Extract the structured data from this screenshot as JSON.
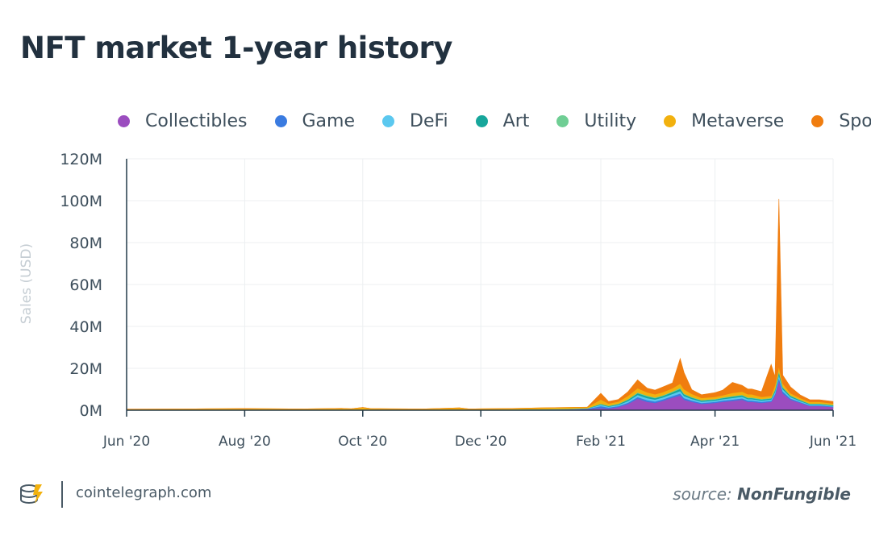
{
  "title": "NFT market 1-year history",
  "footer": {
    "site": "cointelegraph.com",
    "source_prefix": "source:",
    "source_name": "NonFungible"
  },
  "chart_data": {
    "type": "area",
    "stacked": true,
    "title": "NFT market 1-year history",
    "ylabel": "Sales (USD)",
    "xlabel": "",
    "ylim": [
      0,
      120000000
    ],
    "yticks": [
      "0M",
      "20M",
      "40M",
      "60M",
      "80M",
      "100M",
      "120M"
    ],
    "xticks": [
      "Jun '20",
      "Aug '20",
      "Oct '20",
      "Dec '20",
      "Feb '21",
      "Apr '21",
      "Jun '21"
    ],
    "grid": true,
    "legend_position": "top",
    "x": [
      "2020-06-01",
      "2020-07-01",
      "2020-08-01",
      "2020-09-01",
      "2020-09-20",
      "2020-09-25",
      "2020-10-01",
      "2020-10-05",
      "2020-10-15",
      "2020-11-01",
      "2020-11-20",
      "2020-11-25",
      "2020-12-01",
      "2020-12-20",
      "2021-01-01",
      "2021-01-15",
      "2021-01-25",
      "2021-02-01",
      "2021-02-05",
      "2021-02-10",
      "2021-02-15",
      "2021-02-20",
      "2021-02-25",
      "2021-03-01",
      "2021-03-05",
      "2021-03-10",
      "2021-03-14",
      "2021-03-16",
      "2021-03-20",
      "2021-03-25",
      "2021-04-01",
      "2021-04-05",
      "2021-04-10",
      "2021-04-15",
      "2021-04-18",
      "2021-04-20",
      "2021-04-25",
      "2021-04-30",
      "2021-05-02",
      "2021-05-04",
      "2021-05-06",
      "2021-05-10",
      "2021-05-15",
      "2021-05-20",
      "2021-05-25",
      "2021-06-01"
    ],
    "series": [
      {
        "name": "Collectibles",
        "color": "#9b4dbf",
        "values": [
          0.1,
          0.1,
          0.1,
          0.1,
          0.1,
          0.1,
          0.1,
          0.1,
          0.1,
          0.1,
          0.1,
          0.1,
          0.1,
          0.2,
          0.3,
          0.4,
          0.6,
          1.0,
          0.8,
          1.5,
          3.0,
          5.5,
          4.0,
          3.5,
          4.5,
          6.0,
          7.0,
          5.0,
          4.0,
          3.0,
          3.5,
          4.0,
          4.5,
          5.0,
          4.0,
          4.0,
          3.5,
          4.0,
          7.0,
          14.0,
          8.0,
          5.0,
          3.5,
          2.0,
          2.0,
          1.5
        ]
      },
      {
        "name": "Game",
        "color": "#3a7be0",
        "values": [
          0.05,
          0.05,
          0.05,
          0.05,
          0.05,
          0.05,
          0.05,
          0.05,
          0.05,
          0.05,
          0.05,
          0.05,
          0.05,
          0.05,
          0.05,
          0.05,
          0.1,
          1.0,
          0.5,
          0.5,
          0.6,
          0.8,
          0.8,
          0.7,
          0.7,
          0.8,
          1.0,
          0.8,
          0.6,
          0.5,
          0.5,
          0.6,
          0.6,
          0.7,
          0.6,
          0.6,
          0.5,
          0.5,
          0.8,
          1.5,
          1.0,
          0.6,
          0.4,
          0.3,
          0.3,
          0.3
        ]
      },
      {
        "name": "DeFi",
        "color": "#5bc8ef",
        "values": [
          0.05,
          0.05,
          0.05,
          0.05,
          0.05,
          0.05,
          0.05,
          0.05,
          0.05,
          0.05,
          0.05,
          0.05,
          0.05,
          0.05,
          0.05,
          0.1,
          0.1,
          0.6,
          0.4,
          0.5,
          0.8,
          1.0,
          1.0,
          0.9,
          0.9,
          1.0,
          1.2,
          1.0,
          0.8,
          0.6,
          0.6,
          0.7,
          0.8,
          0.8,
          0.7,
          0.7,
          0.6,
          0.6,
          1.0,
          1.5,
          1.0,
          0.7,
          0.5,
          0.4,
          0.4,
          0.3
        ]
      },
      {
        "name": "Art",
        "color": "#17a69b",
        "values": [
          0.05,
          0.05,
          0.05,
          0.05,
          0.05,
          0.05,
          0.05,
          0.05,
          0.05,
          0.05,
          0.05,
          0.05,
          0.05,
          0.05,
          0.05,
          0.05,
          0.1,
          0.3,
          0.3,
          0.4,
          0.6,
          0.8,
          0.8,
          0.7,
          0.7,
          0.8,
          1.0,
          0.8,
          0.6,
          0.5,
          0.5,
          0.5,
          0.6,
          0.6,
          0.5,
          0.5,
          0.5,
          0.5,
          0.8,
          1.2,
          0.8,
          0.5,
          0.4,
          0.3,
          0.3,
          0.3
        ]
      },
      {
        "name": "Utility",
        "color": "#6fce94",
        "values": [
          0.05,
          0.05,
          0.05,
          0.05,
          0.05,
          0.05,
          0.05,
          0.05,
          0.05,
          0.05,
          0.05,
          0.05,
          0.05,
          0.05,
          0.05,
          0.05,
          0.05,
          0.2,
          0.2,
          0.2,
          0.3,
          0.4,
          0.4,
          0.3,
          0.3,
          0.4,
          0.5,
          0.4,
          0.3,
          0.3,
          0.3,
          0.3,
          0.3,
          0.3,
          0.3,
          0.3,
          0.3,
          0.3,
          0.4,
          0.6,
          0.4,
          0.3,
          0.2,
          0.2,
          0.2,
          0.2
        ]
      },
      {
        "name": "Metaverse",
        "color": "#f2b10e",
        "values": [
          0.2,
          0.3,
          0.5,
          0.3,
          0.6,
          0.4,
          1.0,
          0.5,
          0.4,
          0.3,
          0.8,
          0.3,
          0.4,
          0.5,
          0.6,
          0.7,
          0.5,
          2.0,
          1.0,
          1.0,
          1.5,
          2.0,
          1.5,
          1.5,
          1.5,
          1.5,
          2.0,
          2.0,
          1.5,
          1.0,
          1.0,
          1.0,
          1.5,
          1.5,
          1.5,
          1.5,
          1.0,
          1.0,
          2.0,
          2.0,
          1.5,
          1.0,
          0.8,
          0.8,
          0.8,
          0.6
        ]
      },
      {
        "name": "Sports",
        "color": "#f07d0f",
        "values": [
          0.0,
          0.0,
          0.0,
          0.0,
          0.0,
          0.0,
          0.0,
          0.0,
          0.0,
          0.0,
          0.0,
          0.0,
          0.0,
          0.0,
          0.0,
          0.0,
          0.0,
          3.0,
          1.0,
          1.0,
          2.0,
          4.0,
          2.0,
          2.0,
          2.5,
          2.5,
          12.0,
          8.0,
          2.0,
          1.5,
          2.0,
          2.5,
          5.0,
          3.0,
          2.5,
          2.5,
          2.5,
          15.0,
          4.0,
          80.0,
          4.0,
          3.0,
          1.5,
          1.0,
          1.0,
          1.0
        ]
      }
    ],
    "units": "millions USD"
  }
}
